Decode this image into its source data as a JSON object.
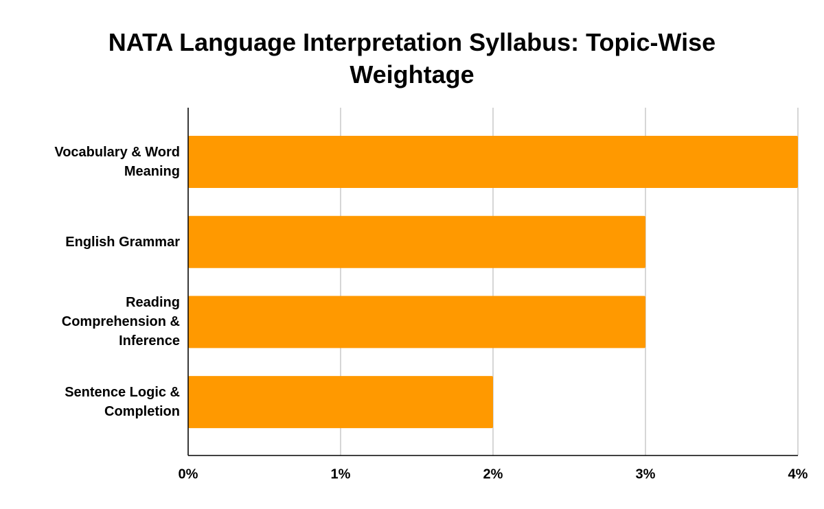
{
  "chart_data": {
    "type": "bar",
    "orientation": "horizontal",
    "title": "NATA Language Interpretation Syllabus: Topic-Wise Weightage",
    "categories": [
      "Vocabulary & Word Meaning",
      "English Grammar",
      "Reading Comprehension & Inference",
      "Sentence Logic & Completion"
    ],
    "values": [
      4,
      3,
      3,
      2
    ],
    "color": "#ff9900",
    "xlim": [
      0,
      4
    ],
    "xticks": [
      {
        "value": 0,
        "label": "0%"
      },
      {
        "value": 1,
        "label": "1%"
      },
      {
        "value": 2,
        "label": "2%"
      },
      {
        "value": 3,
        "label": "3%"
      },
      {
        "value": 4,
        "label": "4%"
      }
    ],
    "grid": true
  }
}
